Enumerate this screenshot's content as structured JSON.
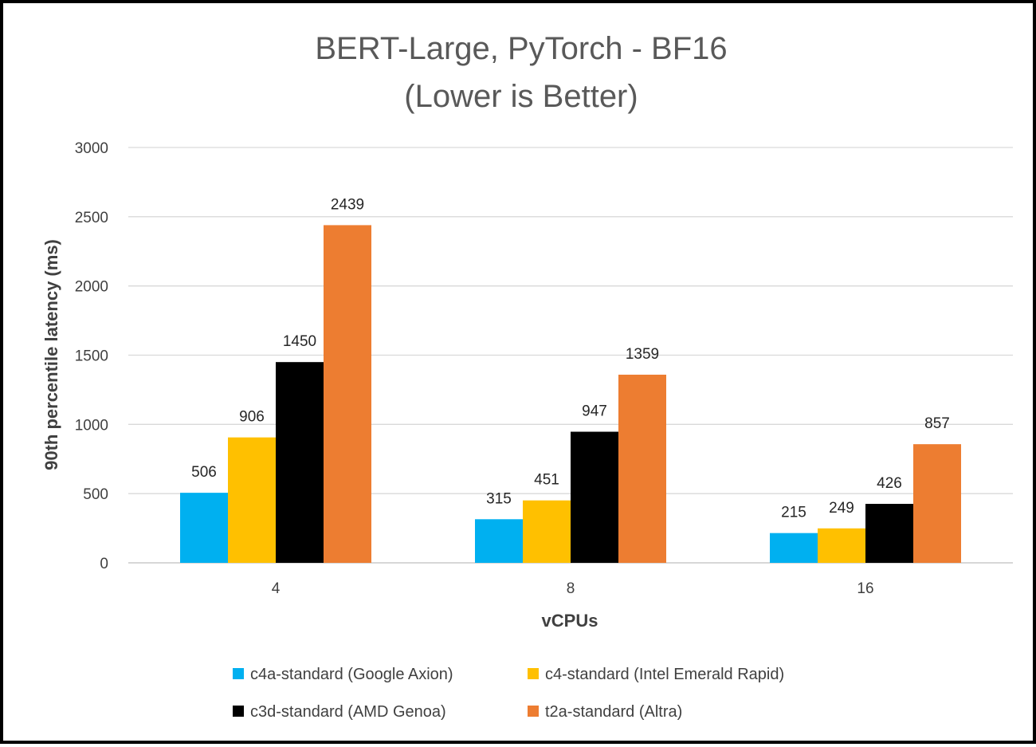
{
  "chart_data": {
    "type": "bar",
    "title": [
      "BERT-Large, PyTorch - BF16",
      "(Lower is Better)"
    ],
    "xlabel": "vCPUs",
    "ylabel": "90th percentile latency (ms)",
    "categories": [
      "4",
      "8",
      "16"
    ],
    "ylim": [
      0,
      3000
    ],
    "yticks": [
      0,
      500,
      1000,
      1500,
      2000,
      2500,
      3000
    ],
    "grid": true,
    "legend_position": "bottom",
    "series": [
      {
        "name": "c4a-standard (Google Axion)",
        "color": "#00B0F0",
        "values": [
          506,
          315,
          215
        ]
      },
      {
        "name": "c4-standard (Intel Emerald Rapid)",
        "color": "#FFC000",
        "values": [
          906,
          451,
          249
        ]
      },
      {
        "name": "c3d-standard (AMD Genoa)",
        "color": "#000000",
        "values": [
          1450,
          947,
          426
        ]
      },
      {
        "name": "t2a-standard (Altra)",
        "color": "#ED7D31",
        "values": [
          2439,
          1359,
          857
        ]
      }
    ]
  }
}
